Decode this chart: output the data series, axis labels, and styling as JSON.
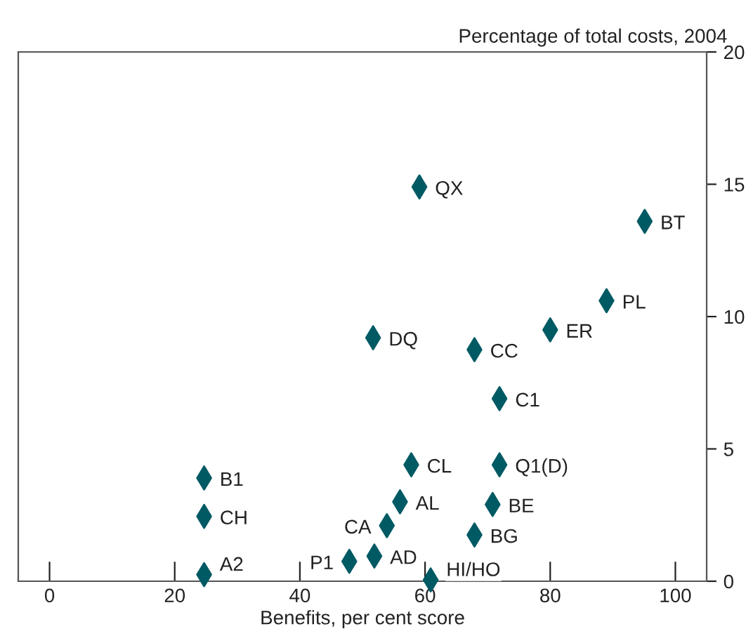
{
  "chart_data": {
    "type": "scatter",
    "xlabel": "Benefits, per cent score",
    "ylabel": "Percentage of total costs, 2004",
    "x": [
      59.1,
      95.1,
      89,
      80,
      51.7,
      67.9,
      71.9,
      24.7,
      57.8,
      71.9,
      56,
      70.8,
      24.7,
      53.9,
      67.9,
      24.7,
      47.9,
      51.9,
      60.9
    ],
    "series": [
      {
        "color": "#005a64",
        "values": [
          14.9,
          13.6,
          10.6,
          9.5,
          9.2,
          8.75,
          6.9,
          3.9,
          4.4,
          4.4,
          3.0,
          2.9,
          2.45,
          2.1,
          1.75,
          0.25,
          0.75,
          0.95,
          0.05
        ]
      }
    ],
    "annotations": [
      {
        "text": "QX",
        "x": 59.1,
        "y": 14.9
      },
      {
        "text": "BT",
        "x": 95.1,
        "y": 13.6
      },
      {
        "text": "PL",
        "x": 89,
        "y": 10.6
      },
      {
        "text": "ER",
        "x": 80,
        "y": 9.5
      },
      {
        "text": "DQ",
        "x": 51.7,
        "y": 9.2
      },
      {
        "text": "CC",
        "x": 67.9,
        "y": 8.75
      },
      {
        "text": "C1",
        "x": 71.9,
        "y": 6.9
      },
      {
        "text": "B1",
        "x": 24.7,
        "y": 3.9
      },
      {
        "text": "CL",
        "x": 57.8,
        "y": 4.4
      },
      {
        "text": "Q1(D)",
        "x": 71.9,
        "y": 4.4
      },
      {
        "text": "AL",
        "x": 56,
        "y": 3.0
      },
      {
        "text": "BE",
        "x": 70.8,
        "y": 2.9
      },
      {
        "text": "CH",
        "x": 24.7,
        "y": 2.45
      },
      {
        "text": "CA",
        "x": 53.9,
        "y": 2.1
      },
      {
        "text": "BG",
        "x": 67.9,
        "y": 1.75
      },
      {
        "text": "A2",
        "x": 24.7,
        "y": 0.25
      },
      {
        "text": "P1",
        "x": 47.9,
        "y": 0.75
      },
      {
        "text": "AD",
        "x": 51.9,
        "y": 0.95
      },
      {
        "text": "HI/HO",
        "x": 60.9,
        "y": 0.05
      }
    ],
    "xlim": [
      -5,
      105
    ],
    "ylim": [
      0,
      20
    ],
    "xticks": [
      0,
      20,
      40,
      60,
      80,
      100
    ],
    "yticks": [
      0,
      5,
      10,
      15,
      20
    ],
    "marker": "diamond",
    "grid": false,
    "legend": false
  }
}
